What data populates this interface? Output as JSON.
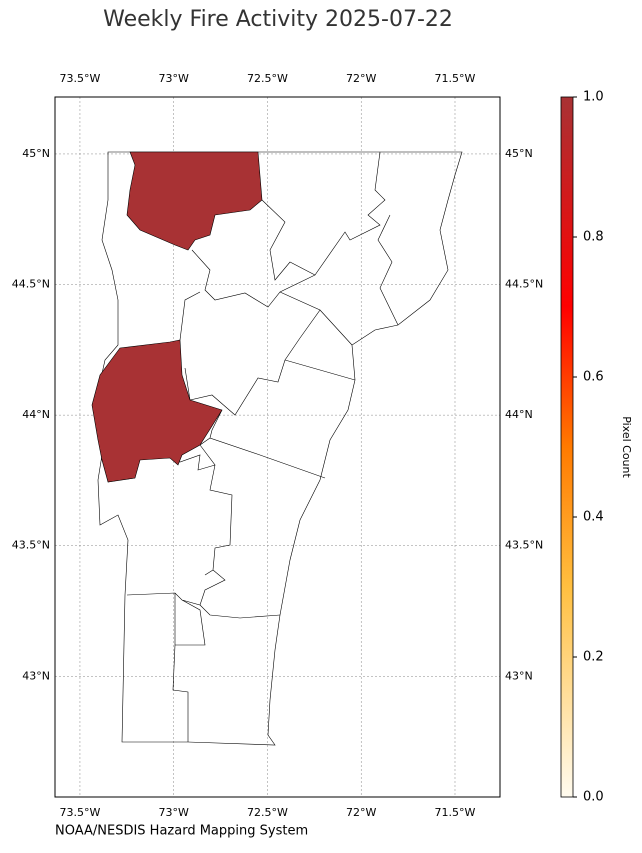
{
  "map": {
    "title": "Weekly Fire Activity 2025-07-22",
    "xlim": [
      -73.633,
      -71.26
    ],
    "ylim": [
      42.538,
      45.218
    ],
    "xticks": [
      {
        "value": -73.5,
        "label": "73.5°W"
      },
      {
        "value": -73,
        "label": "73°W"
      },
      {
        "value": -72.5,
        "label": "72.5°W"
      },
      {
        "value": -72,
        "label": "72°W"
      },
      {
        "value": -71.5,
        "label": "71.5°W"
      }
    ],
    "yticks": [
      {
        "value": 43,
        "label": "43°N"
      },
      {
        "value": 43.5,
        "label": "43.5°N"
      },
      {
        "value": 44,
        "label": "44°N"
      },
      {
        "value": 44.5,
        "label": "44.5°N"
      },
      {
        "value": 45,
        "label": "45°N"
      }
    ],
    "grid": true,
    "colorbar": {
      "label": "Pixel Count",
      "lim": [
        0,
        1
      ],
      "ticks": [
        {
          "value": 0,
          "label": "0.0"
        },
        {
          "value": 0.2,
          "label": "0.2"
        },
        {
          "value": 0.4,
          "label": "0.4"
        },
        {
          "value": 0.6,
          "label": "0.6"
        },
        {
          "value": 0.8,
          "label": "0.8"
        },
        {
          "value": 1,
          "label": "1.0"
        }
      ]
    },
    "source": "NOAA/NESDIS Hazard Mapping System"
  }
}
